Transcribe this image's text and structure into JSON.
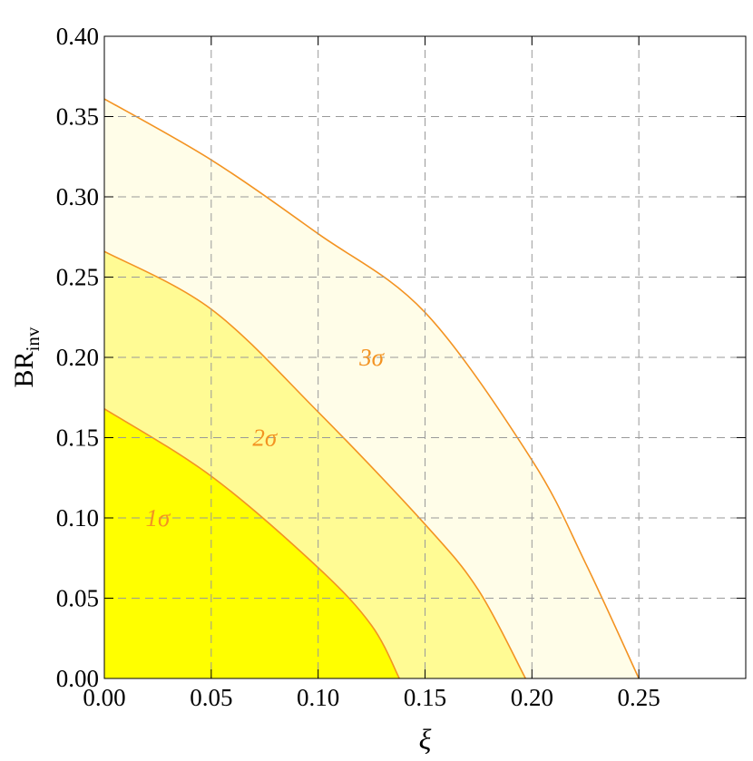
{
  "chart_data": {
    "type": "contour",
    "x_label": "ξ",
    "y_label": "BR",
    "y_label_sub": "inv",
    "xlim": [
      0,
      0.3
    ],
    "ylim": [
      0,
      0.4
    ],
    "xticks": [
      {
        "value": 0,
        "label": "0.00"
      },
      {
        "value": 0.05,
        "label": "0.05"
      },
      {
        "value": 0.1,
        "label": "0.10"
      },
      {
        "value": 0.15,
        "label": "0.15"
      },
      {
        "value": 0.2,
        "label": "0.20"
      },
      {
        "value": 0.25,
        "label": "0.25"
      }
    ],
    "yticks": [
      {
        "value": 0,
        "label": "0.00"
      },
      {
        "value": 0.05,
        "label": "0.05"
      },
      {
        "value": 0.1,
        "label": "0.10"
      },
      {
        "value": 0.15,
        "label": "0.15"
      },
      {
        "value": 0.2,
        "label": "0.20"
      },
      {
        "value": 0.25,
        "label": "0.25"
      },
      {
        "value": 0.3,
        "label": "0.30"
      },
      {
        "value": 0.35,
        "label": "0.35"
      },
      {
        "value": 0.4,
        "label": "0.40"
      }
    ],
    "grid": true,
    "line_color": "#f39322",
    "series": [
      {
        "name": "3σ",
        "color": "#fffde8",
        "label_x": 0.125,
        "label_y": 0.2,
        "x": [
          0,
          0.05,
          0.1,
          0.15,
          0.2,
          0.225,
          0.25
        ],
        "values": [
          0.361,
          0.323,
          0.277,
          0.228,
          0.136,
          0.072,
          0
        ]
      },
      {
        "name": "2σ",
        "color": "#fffb94",
        "label_x": 0.075,
        "label_y": 0.15,
        "x": [
          0,
          0.05,
          0.1,
          0.15,
          0.175,
          0.197
        ],
        "values": [
          0.266,
          0.23,
          0.166,
          0.096,
          0.055,
          0
        ]
      },
      {
        "name": "1σ",
        "color": "#ffff00",
        "label_x": 0.025,
        "label_y": 0.1,
        "x": [
          0,
          0.05,
          0.1,
          0.125,
          0.138
        ],
        "values": [
          0.168,
          0.126,
          0.069,
          0.033,
          0
        ]
      }
    ]
  }
}
